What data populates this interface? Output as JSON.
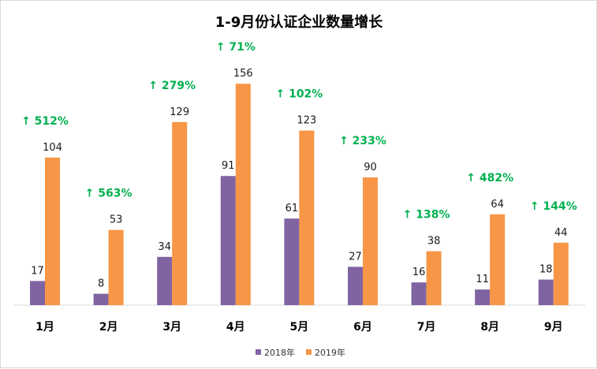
{
  "chart_data": {
    "type": "bar",
    "title": "1-9月份认证企业数量增长",
    "categories": [
      "1月",
      "2月",
      "3月",
      "4月",
      "5月",
      "6月",
      "7月",
      "8月",
      "9月"
    ],
    "series": [
      {
        "name": "2018年",
        "color": "#8064a2",
        "values": [
          17,
          8,
          34,
          91,
          61,
          27,
          16,
          11,
          18
        ]
      },
      {
        "name": "2019年",
        "color": "#f79646",
        "values": [
          104,
          53,
          129,
          156,
          123,
          90,
          38,
          64,
          44
        ]
      }
    ],
    "growth_labels": [
      "↑ 512%",
      "↑ 563%",
      "↑ 279%",
      "↑ 71%",
      "↑ 102%",
      "↑ 233%",
      "↑ 138%",
      "↑ 482%",
      "↑ 144%"
    ],
    "growth_color": "#00b050",
    "ylim": [
      0,
      160
    ],
    "grid": false,
    "legend_position": "bottom"
  }
}
